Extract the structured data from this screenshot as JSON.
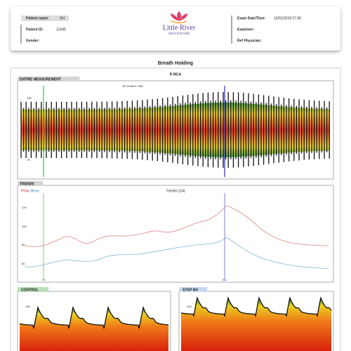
{
  "header": {
    "patient_name_label": "Patient name:",
    "patient_name": "SH",
    "patient_id_label": "Patient ID:",
    "patient_id": "12345",
    "gender_label": "Gender:",
    "logo_name": "Little River",
    "logo_sub": "HEALTHCARE",
    "exam_label": "Exam Date/Time:",
    "exam_value": "10/01/2018 07:40",
    "examiner_label": "Examiner:",
    "physician_label": "Ref Physician:"
  },
  "title": "Breath Holding",
  "vessel": "R MCA",
  "panels": [
    {
      "label": "ENTIRE MEASUREMENT",
      "note": "BH Duration: 108s",
      "y_labels": [
        "100",
        "70"
      ]
    },
    {
      "label": "TRENDS",
      "chart_title": "Trends (1/4)",
      "legend": [
        "Peak",
        "Mean"
      ],
      "y_labels": [
        "120",
        "100",
        "80",
        "60"
      ],
      "markers": [
        "BH",
        "Bkx"
      ]
    },
    {
      "label": "CONTROL",
      "y_labels": [
        "100"
      ]
    },
    {
      "label": "STOP BH",
      "y_labels": [
        "100"
      ]
    }
  ]
}
